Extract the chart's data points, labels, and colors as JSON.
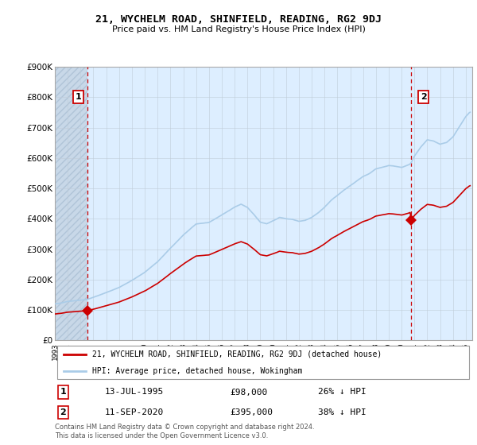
{
  "title": "21, WYCHELM ROAD, SHINFIELD, READING, RG2 9DJ",
  "subtitle": "Price paid vs. HM Land Registry's House Price Index (HPI)",
  "legend_line1": "21, WYCHELM ROAD, SHINFIELD, READING, RG2 9DJ (detached house)",
  "legend_line2": "HPI: Average price, detached house, Wokingham",
  "footnote": "Contains HM Land Registry data © Crown copyright and database right 2024.\nThis data is licensed under the Open Government Licence v3.0.",
  "annotation1_date": "13-JUL-1995",
  "annotation1_price": "£98,000",
  "annotation1_hpi": "26% ↓ HPI",
  "annotation2_date": "11-SEP-2020",
  "annotation2_price": "£395,000",
  "annotation2_hpi": "38% ↓ HPI",
  "sale1_x": 1995.54,
  "sale1_y": 98000,
  "sale2_x": 2020.71,
  "sale2_y": 395000,
  "hpi_color": "#aacce8",
  "sale_color": "#cc0000",
  "vline_color": "#cc0000",
  "bg_color": "#ddeeff",
  "hatch_color": "#c8d8e8",
  "ylim": [
    0,
    900000
  ],
  "xlim": [
    1993.0,
    2025.5
  ],
  "grid_color": "#c0ccd8"
}
